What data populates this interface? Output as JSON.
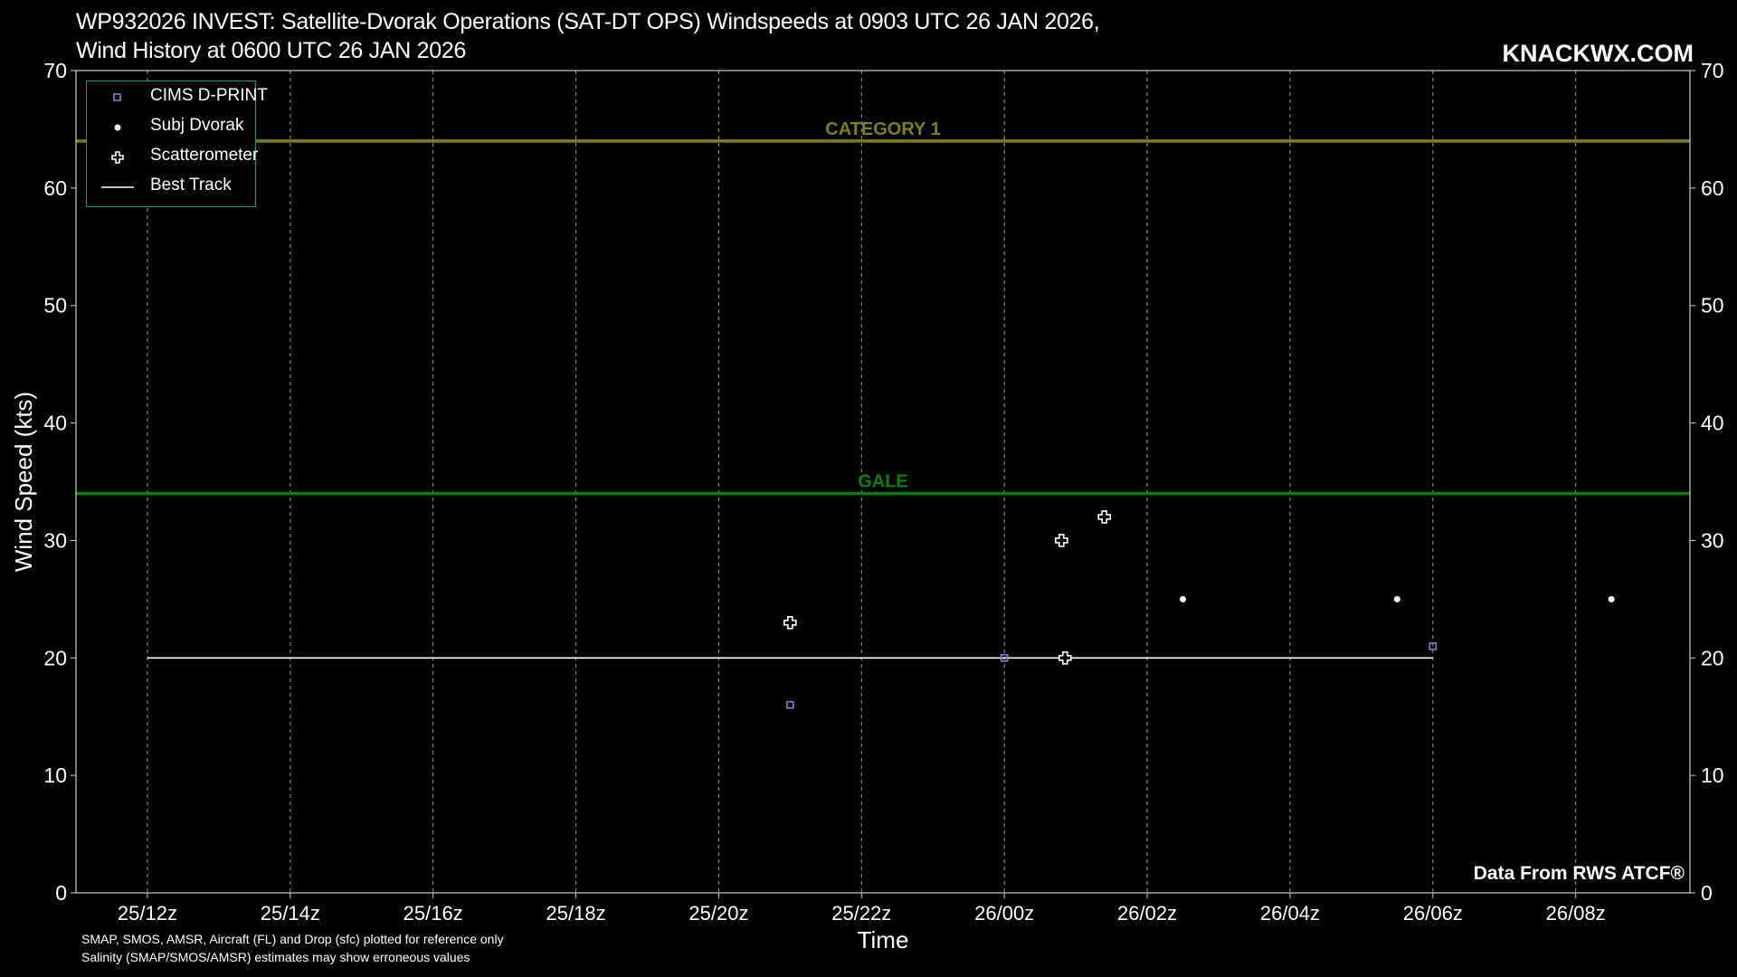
{
  "title_line1": "WP932026 INVEST: Satellite-Dvorak Operations (SAT-DT OPS) Windspeeds at 0903 UTC 26 JAN 2026,",
  "title_line2": "Wind History at 0600 UTC 26 JAN 2026",
  "brand": "KNACKWX.COM",
  "credit": "Data From RWS ATCF®",
  "footnote_line1": "SMAP, SMOS, AMSR, Aircraft (FL) and Drop (sfc) plotted for reference only",
  "footnote_line2": "Salinity (SMAP/SMOS/AMSR) estimates may show erroneous values",
  "colors": {
    "background": "#000000",
    "category1": "#7f7f12",
    "gale": "#0a7f0a",
    "cims": "#9b6fd6",
    "legend_border": "#2a8f8f"
  },
  "chart_data": {
    "type": "scatter",
    "xlabel": "Time",
    "ylabel": "Wind Speed (kts)",
    "ylim": [
      0,
      70
    ],
    "yticks": [
      0,
      10,
      20,
      30,
      40,
      50,
      60,
      70
    ],
    "xlim_hours": [
      -1.0,
      21.6
    ],
    "xticks": [
      {
        "h": 0,
        "label": "25/12z"
      },
      {
        "h": 2,
        "label": "25/14z"
      },
      {
        "h": 4,
        "label": "25/16z"
      },
      {
        "h": 6,
        "label": "25/18z"
      },
      {
        "h": 8,
        "label": "25/20z"
      },
      {
        "h": 10,
        "label": "25/22z"
      },
      {
        "h": 12,
        "label": "26/00z"
      },
      {
        "h": 14,
        "label": "26/02z"
      },
      {
        "h": 16,
        "label": "26/04z"
      },
      {
        "h": 18,
        "label": "26/06z"
      },
      {
        "h": 20,
        "label": "26/08z"
      }
    ],
    "grid": true,
    "legend_position": "top-left",
    "thresholds": [
      {
        "name": "CATEGORY 1",
        "value": 64,
        "color": "#7f7f12"
      },
      {
        "name": "GALE",
        "value": 34,
        "color": "#0a7f0a"
      }
    ],
    "series": [
      {
        "name": "CIMS D-PRINT",
        "marker": "square",
        "color": "#9b6fd6",
        "points": [
          {
            "h": 9.0,
            "y": 16
          },
          {
            "h": 12.0,
            "y": 20
          },
          {
            "h": 18.0,
            "y": 21
          }
        ]
      },
      {
        "name": "Subj Dvorak",
        "marker": "dot",
        "color": "#ffffff",
        "points": [
          {
            "h": 14.5,
            "y": 25
          },
          {
            "h": 17.5,
            "y": 25
          },
          {
            "h": 20.5,
            "y": 25
          }
        ]
      },
      {
        "name": "Scatterometer",
        "marker": "plus",
        "color": "#ffffff",
        "points": [
          {
            "h": 9.0,
            "y": 23
          },
          {
            "h": 12.8,
            "y": 30
          },
          {
            "h": 12.85,
            "y": 20
          },
          {
            "h": 13.4,
            "y": 32
          }
        ]
      },
      {
        "name": "Best Track",
        "marker": "line",
        "color": "#ffffff",
        "points": [
          {
            "h": 0,
            "y": 20
          },
          {
            "h": 18,
            "y": 20
          }
        ]
      }
    ]
  }
}
